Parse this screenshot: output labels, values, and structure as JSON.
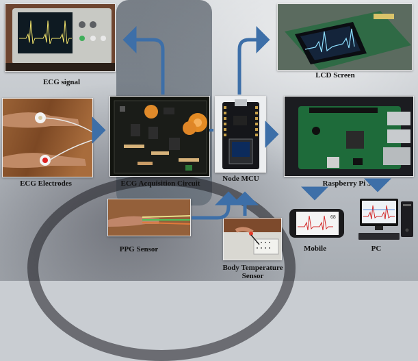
{
  "labels": {
    "ecg_signal": "ECG signal",
    "lcd_screen": "LCD Screen",
    "ecg_electrodes": "ECG Electrodes",
    "ecg_acquisition_circuit": "ECG Acquisition Circuit",
    "node_mcu": "Node MCU",
    "raspberry_pi": "Raspberry Pi 3",
    "ppg_sensor": "PPG Sensor",
    "body_temperature_sensor_line1": "Body Temperature",
    "body_temperature_sensor_line2": "Sensor",
    "mobile": "Mobile",
    "pc": "PC",
    "mobile_screen_value": "68"
  },
  "colors": {
    "arrow": "#3d6fa8",
    "pcb_green": "#1e6b3a",
    "node_mcu_black": "#15161a"
  }
}
